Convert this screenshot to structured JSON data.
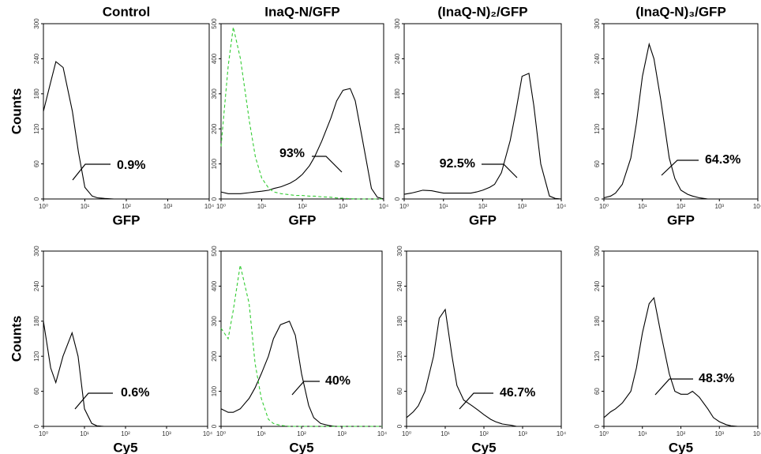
{
  "chart_data": [
    {
      "type": "line",
      "title": "Control",
      "x_label": "GFP",
      "y_label": "Counts",
      "annotation": "0.9%",
      "xscale": "log",
      "x": [
        1,
        1.5,
        2,
        3,
        5,
        7,
        10,
        15,
        20,
        30,
        50,
        70,
        100,
        150,
        200,
        300,
        500,
        700,
        1000,
        1500,
        2000,
        3000,
        5000,
        7000,
        10000
      ],
      "xlim": [
        1,
        10000
      ],
      "xticks": [
        {
          "value": 1,
          "label": "10⁰"
        },
        {
          "value": 10,
          "label": "10¹"
        },
        {
          "value": 100,
          "label": "10²"
        },
        {
          "value": 1000,
          "label": "10³"
        },
        {
          "value": 10000,
          "label": "10⁴"
        }
      ],
      "ylim": [
        0,
        300
      ],
      "yticks": [
        0,
        60,
        120,
        180,
        240,
        300
      ],
      "series": [
        {
          "color": "#000000",
          "dash": "solid",
          "values": [
            150,
            200,
            235,
            225,
            150,
            80,
            20,
            5,
            2,
            1,
            0,
            0,
            0,
            0,
            0,
            0,
            0,
            0,
            0,
            0,
            0,
            0,
            0,
            0,
            0
          ]
        }
      ]
    },
    {
      "type": "line",
      "title": "InaQ-N/GFP",
      "x_label": "GFP",
      "annotation": "93%",
      "xscale": "log",
      "x": [
        1,
        1.5,
        2,
        3,
        5,
        7,
        10,
        15,
        20,
        30,
        50,
        70,
        100,
        150,
        200,
        300,
        500,
        700,
        1000,
        1500,
        2000,
        3000,
        5000,
        7000,
        10000
      ],
      "xlim": [
        1,
        10000
      ],
      "xticks": [
        {
          "value": 1,
          "label": "10⁰"
        },
        {
          "value": 10,
          "label": "10¹"
        },
        {
          "value": 100,
          "label": "10²"
        },
        {
          "value": 1000,
          "label": "10³"
        },
        {
          "value": 10000,
          "label": "10⁴"
        }
      ],
      "ylim": [
        0,
        500
      ],
      "yticks": [
        0,
        100,
        200,
        300,
        400,
        500
      ],
      "series": [
        {
          "color": "#000000",
          "dash": "solid",
          "values": [
            20,
            15,
            15,
            15,
            18,
            20,
            22,
            25,
            30,
            35,
            45,
            55,
            70,
            95,
            120,
            165,
            230,
            280,
            310,
            315,
            280,
            170,
            30,
            5,
            0
          ]
        },
        {
          "color": "#33cc33",
          "dash": "dashed",
          "values": [
            150,
            380,
            490,
            400,
            220,
            120,
            60,
            30,
            20,
            15,
            12,
            10,
            10,
            8,
            8,
            6,
            5,
            3,
            2,
            1,
            0,
            0,
            0,
            0,
            0
          ]
        }
      ]
    },
    {
      "type": "line",
      "title": "(InaQ-N)₂/GFP",
      "x_label": "GFP",
      "annotation": "92.5%",
      "xscale": "log",
      "x": [
        1,
        1.5,
        2,
        3,
        5,
        7,
        10,
        15,
        20,
        30,
        50,
        70,
        100,
        150,
        200,
        300,
        500,
        700,
        1000,
        1500,
        2000,
        3000,
        5000,
        7000,
        10000
      ],
      "xlim": [
        1,
        10000
      ],
      "xticks": [
        {
          "value": 1,
          "label": "10⁰"
        },
        {
          "value": 10,
          "label": "10¹"
        },
        {
          "value": 100,
          "label": "10²"
        },
        {
          "value": 1000,
          "label": "10³"
        },
        {
          "value": 10000,
          "label": "10⁴"
        }
      ],
      "ylim": [
        0,
        300
      ],
      "yticks": [
        0,
        60,
        120,
        180,
        240,
        300
      ],
      "series": [
        {
          "color": "#000000",
          "dash": "solid",
          "values": [
            8,
            10,
            12,
            15,
            14,
            12,
            10,
            10,
            10,
            10,
            10,
            12,
            15,
            20,
            25,
            45,
            100,
            150,
            210,
            215,
            160,
            60,
            5,
            1,
            0
          ]
        }
      ]
    },
    {
      "type": "line",
      "title": "(InaQ-N)₃/GFP",
      "x_label": "GFP",
      "annotation": "64.3%",
      "xscale": "log",
      "x": [
        1,
        1.5,
        2,
        3,
        5,
        7,
        10,
        15,
        20,
        30,
        50,
        70,
        100,
        150,
        200,
        300,
        500,
        700,
        1000,
        1500,
        2000,
        3000,
        5000,
        7000,
        10000
      ],
      "xlim": [
        1,
        10000
      ],
      "xticks": [
        {
          "value": 1,
          "label": "10⁰"
        },
        {
          "value": 10,
          "label": "10¹"
        },
        {
          "value": 100,
          "label": "10²"
        },
        {
          "value": 1000,
          "label": "10³"
        },
        {
          "value": 10000,
          "label": "10⁴"
        }
      ],
      "ylim": [
        0,
        300
      ],
      "yticks": [
        0,
        60,
        120,
        180,
        240,
        300
      ],
      "series": [
        {
          "color": "#000000",
          "dash": "solid",
          "values": [
            2,
            5,
            10,
            25,
            70,
            130,
            210,
            265,
            240,
            170,
            70,
            35,
            15,
            8,
            5,
            2,
            0,
            0,
            0,
            0,
            0,
            0,
            0,
            0,
            0
          ]
        }
      ]
    },
    {
      "type": "line",
      "x_label": "Cy5",
      "y_label": "Counts",
      "annotation": "0.6%",
      "xscale": "log",
      "x": [
        1,
        1.5,
        2,
        3,
        5,
        7,
        10,
        15,
        20,
        30,
        50,
        70,
        100,
        150,
        200,
        300,
        500,
        700,
        1000,
        1500,
        2000,
        3000,
        5000,
        7000,
        10000
      ],
      "xlim": [
        1,
        10000
      ],
      "xticks": [
        {
          "value": 1,
          "label": "10⁰"
        },
        {
          "value": 10,
          "label": "10¹"
        },
        {
          "value": 100,
          "label": "10²"
        },
        {
          "value": 1000,
          "label": "10³"
        },
        {
          "value": 10000,
          "label": "10⁴"
        }
      ],
      "ylim": [
        0,
        300
      ],
      "yticks": [
        0,
        60,
        120,
        180,
        240,
        300
      ],
      "series": [
        {
          "color": "#000000",
          "dash": "solid",
          "values": [
            180,
            100,
            75,
            120,
            160,
            120,
            30,
            5,
            1,
            0,
            0,
            0,
            0,
            0,
            0,
            0,
            0,
            0,
            0,
            0,
            0,
            0,
            0,
            0,
            0
          ]
        }
      ]
    },
    {
      "type": "line",
      "x_label": "Cy5",
      "annotation": "40%",
      "xscale": "log",
      "x": [
        1,
        1.5,
        2,
        3,
        5,
        7,
        10,
        15,
        20,
        30,
        50,
        70,
        100,
        150,
        200,
        300,
        500,
        700,
        1000,
        1500,
        2000,
        3000,
        5000,
        7000,
        10000
      ],
      "xlim": [
        1,
        10000
      ],
      "xticks": [
        {
          "value": 1,
          "label": "10⁰"
        },
        {
          "value": 10,
          "label": "10¹"
        },
        {
          "value": 100,
          "label": "10²"
        },
        {
          "value": 1000,
          "label": "10³"
        },
        {
          "value": 10000,
          "label": "10⁴"
        }
      ],
      "ylim": [
        0,
        500
      ],
      "yticks": [
        0,
        100,
        200,
        300,
        400,
        500
      ],
      "series": [
        {
          "color": "#000000",
          "dash": "solid",
          "values": [
            50,
            40,
            40,
            50,
            80,
            110,
            150,
            200,
            250,
            290,
            300,
            260,
            150,
            60,
            25,
            8,
            2,
            0,
            0,
            0,
            0,
            0,
            0,
            0,
            0
          ]
        },
        {
          "color": "#33cc33",
          "dash": "dashed",
          "values": [
            280,
            250,
            330,
            460,
            350,
            180,
            80,
            20,
            8,
            3,
            0,
            0,
            0,
            0,
            0,
            0,
            0,
            0,
            0,
            0,
            0,
            0,
            0,
            0,
            0
          ]
        }
      ]
    },
    {
      "type": "line",
      "x_label": "Cy5",
      "annotation": "46.7%",
      "xscale": "log",
      "x": [
        1,
        1.5,
        2,
        3,
        5,
        7,
        10,
        15,
        20,
        30,
        50,
        70,
        100,
        150,
        200,
        300,
        500,
        700,
        1000,
        1500,
        2000,
        3000,
        5000,
        7000,
        10000
      ],
      "xlim": [
        1,
        10000
      ],
      "xticks": [
        {
          "value": 1,
          "label": "10⁰"
        },
        {
          "value": 10,
          "label": "10¹"
        },
        {
          "value": 100,
          "label": "10²"
        },
        {
          "value": 1000,
          "label": "10³"
        },
        {
          "value": 10000,
          "label": "10⁴"
        }
      ],
      "ylim": [
        0,
        300
      ],
      "yticks": [
        0,
        60,
        120,
        180,
        240,
        300
      ],
      "series": [
        {
          "color": "#000000",
          "dash": "solid",
          "values": [
            15,
            25,
            35,
            60,
            120,
            185,
            200,
            120,
            70,
            45,
            35,
            28,
            20,
            12,
            8,
            4,
            2,
            0,
            0,
            0,
            0,
            0,
            0,
            0,
            0
          ]
        }
      ]
    },
    {
      "type": "line",
      "x_label": "Cy5",
      "annotation": "48.3%",
      "xscale": "log",
      "x": [
        1,
        1.5,
        2,
        3,
        5,
        7,
        10,
        15,
        20,
        30,
        50,
        70,
        100,
        150,
        200,
        300,
        500,
        700,
        1000,
        1500,
        2000,
        3000,
        5000,
        7000,
        10000
      ],
      "xlim": [
        1,
        10000
      ],
      "xticks": [
        {
          "value": 1,
          "label": "10⁰"
        },
        {
          "value": 10,
          "label": "10¹"
        },
        {
          "value": 100,
          "label": "10²"
        },
        {
          "value": 1000,
          "label": "10³"
        },
        {
          "value": 10000,
          "label": "10⁴"
        }
      ],
      "ylim": [
        0,
        300
      ],
      "yticks": [
        0,
        60,
        120,
        180,
        240,
        300
      ],
      "series": [
        {
          "color": "#000000",
          "dash": "solid",
          "values": [
            15,
            25,
            30,
            40,
            60,
            100,
            160,
            210,
            220,
            160,
            90,
            60,
            55,
            55,
            60,
            50,
            30,
            15,
            8,
            3,
            1,
            0,
            0,
            0,
            0
          ]
        }
      ]
    }
  ]
}
